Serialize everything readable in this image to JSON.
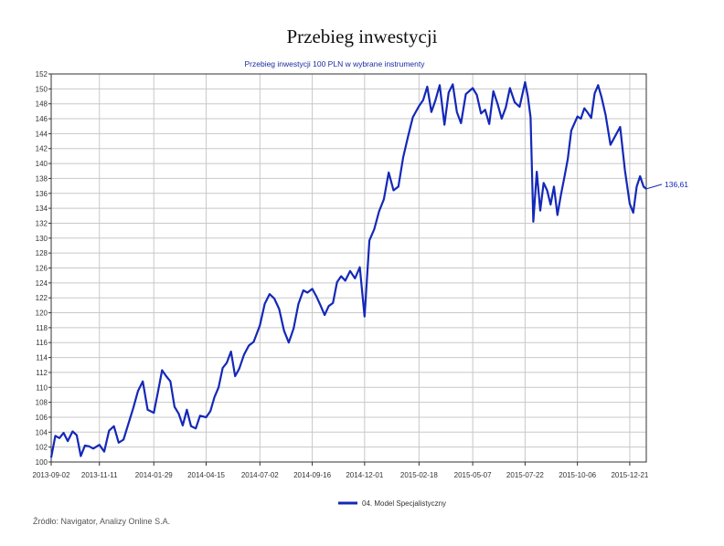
{
  "page": {
    "title": "Przebieg inwestycji",
    "source": "Źródło: Navigator, Analizy Online S.A."
  },
  "colors": {
    "series": "#1428b8",
    "subtitle": "#1a2ca0",
    "grid": "#c8c8c8",
    "axis": "#333333"
  },
  "chart_data": {
    "type": "line",
    "title": "Przebieg inwestycji 100 PLN w wybrane instrumenty",
    "xlabel": "",
    "ylabel": "",
    "ylim": [
      100,
      152
    ],
    "y_ticks": [
      100,
      102,
      104,
      106,
      108,
      110,
      112,
      114,
      116,
      118,
      120,
      122,
      124,
      126,
      128,
      130,
      132,
      134,
      136,
      138,
      140,
      142,
      144,
      146,
      148,
      150,
      152
    ],
    "x_ticks": [
      "2013-09-02",
      "2013-11-11",
      "2014-01-29",
      "2014-04-15",
      "2014-07-02",
      "2014-09-16",
      "2014-12-01",
      "2015-02-18",
      "2015-05-07",
      "2015-07-22",
      "2015-10-06",
      "2015-12-21"
    ],
    "grid": true,
    "legend_position": "bottom-center",
    "end_label": "136,61",
    "series": [
      {
        "name": "04. Model Specjalistyczny",
        "x": [
          "2013-09-02",
          "2013-09-08",
          "2013-09-14",
          "2013-09-20",
          "2013-09-26",
          "2013-10-03",
          "2013-10-09",
          "2013-10-15",
          "2013-10-21",
          "2013-10-27",
          "2013-11-02",
          "2013-11-11",
          "2013-11-18",
          "2013-11-25",
          "2013-12-02",
          "2013-12-09",
          "2013-12-16",
          "2013-12-23",
          "2013-12-30",
          "2014-01-06",
          "2014-01-13",
          "2014-01-20",
          "2014-01-29",
          "2014-02-04",
          "2014-02-10",
          "2014-02-16",
          "2014-02-22",
          "2014-02-28",
          "2014-03-06",
          "2014-03-12",
          "2014-03-18",
          "2014-03-24",
          "2014-03-31",
          "2014-04-06",
          "2014-04-15",
          "2014-04-21",
          "2014-04-27",
          "2014-05-03",
          "2014-05-09",
          "2014-05-15",
          "2014-05-21",
          "2014-05-27",
          "2014-06-02",
          "2014-06-09",
          "2014-06-16",
          "2014-06-23",
          "2014-07-02",
          "2014-07-09",
          "2014-07-16",
          "2014-07-23",
          "2014-07-30",
          "2014-08-06",
          "2014-08-13",
          "2014-08-20",
          "2014-08-27",
          "2014-09-03",
          "2014-09-09",
          "2014-09-16",
          "2014-09-22",
          "2014-09-28",
          "2014-10-04",
          "2014-10-10",
          "2014-10-16",
          "2014-10-22",
          "2014-10-28",
          "2014-11-03",
          "2014-11-10",
          "2014-11-17",
          "2014-11-24",
          "2014-12-01",
          "2014-12-08",
          "2014-12-15",
          "2014-12-22",
          "2014-12-29",
          "2015-01-05",
          "2015-01-12",
          "2015-01-19",
          "2015-01-26",
          "2015-02-02",
          "2015-02-09",
          "2015-02-18",
          "2015-02-24",
          "2015-03-02",
          "2015-03-08",
          "2015-03-14",
          "2015-03-20",
          "2015-03-27",
          "2015-04-02",
          "2015-04-08",
          "2015-04-14",
          "2015-04-20",
          "2015-04-27",
          "2015-05-07",
          "2015-05-13",
          "2015-05-19",
          "2015-05-25",
          "2015-05-31",
          "2015-06-06",
          "2015-06-12",
          "2015-06-18",
          "2015-06-24",
          "2015-06-30",
          "2015-07-07",
          "2015-07-14",
          "2015-07-22",
          "2015-07-26",
          "2015-07-30",
          "2015-08-03",
          "2015-08-08",
          "2015-08-13",
          "2015-08-18",
          "2015-08-23",
          "2015-08-28",
          "2015-09-02",
          "2015-09-07",
          "2015-09-12",
          "2015-09-17",
          "2015-09-22",
          "2015-09-27",
          "2015-10-06",
          "2015-10-11",
          "2015-10-16",
          "2015-10-21",
          "2015-10-26",
          "2015-10-31",
          "2015-11-05",
          "2015-11-10",
          "2015-11-16",
          "2015-11-23",
          "2015-11-30",
          "2015-12-07",
          "2015-12-14",
          "2015-12-21",
          "2015-12-26",
          "2015-12-31",
          "2016-01-05",
          "2016-01-10",
          "2016-01-14"
        ],
        "values": [
          100.6,
          103.5,
          103.2,
          103.9,
          102.8,
          104.1,
          103.6,
          100.8,
          102.2,
          102.1,
          101.8,
          102.3,
          101.4,
          104.2,
          104.8,
          102.6,
          103.0,
          105.1,
          107.2,
          109.5,
          110.8,
          107.0,
          106.6,
          109.4,
          112.3,
          111.5,
          110.8,
          107.4,
          106.5,
          104.9,
          107.0,
          104.8,
          104.5,
          106.2,
          106.0,
          106.8,
          108.7,
          110.0,
          112.6,
          113.3,
          114.8,
          111.5,
          112.5,
          114.4,
          115.6,
          116.1,
          118.3,
          121.2,
          122.5,
          121.9,
          120.5,
          117.6,
          116.0,
          117.9,
          121.2,
          123.0,
          122.7,
          123.2,
          122.2,
          121.0,
          119.7,
          120.9,
          121.3,
          124.1,
          124.9,
          124.3,
          125.6,
          124.6,
          126.1,
          119.5,
          129.7,
          131.2,
          133.6,
          135.2,
          138.8,
          136.4,
          136.9,
          140.8,
          143.6,
          146.2,
          147.7,
          148.5,
          150.3,
          146.9,
          148.5,
          150.5,
          145.2,
          149.5,
          150.6,
          146.9,
          145.4,
          149.3,
          150.1,
          149.2,
          146.7,
          147.2,
          145.3,
          149.7,
          148.0,
          146.0,
          147.5,
          150.1,
          148.2,
          147.6,
          150.9,
          149.0,
          146.2,
          132.2,
          138.9,
          133.7,
          137.4,
          136.4,
          134.5,
          136.9,
          133.1,
          135.8,
          138.1,
          140.6,
          144.4,
          146.3,
          146.0,
          147.4,
          146.8,
          146.1,
          149.4,
          150.5,
          148.9,
          146.5,
          142.5,
          143.7,
          144.9,
          139.1,
          134.6,
          133.4,
          136.9,
          138.3,
          136.9,
          136.6
        ]
      }
    ]
  }
}
